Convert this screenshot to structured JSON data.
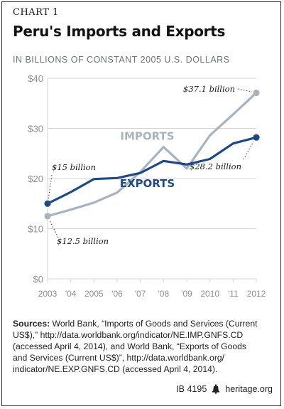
{
  "chart_label": "CHART 1",
  "title": "Peru's Imports and Exports",
  "subtitle": "IN BILLIONS OF CONSTANT 2005 U.S. DOLLARS",
  "sources": {
    "label": "Sources:",
    "text": "World Bank, “Imports of Goods and Services (Current US$),” http://data.worldbank.org/indicator/NE.IMP.GNFS.CD (accessed April 4, 2014), and World Bank, “Exports of Goods and Services (Current US$)”, http://data.worldbank.org/ indicator/NE.EXP.GNFS.CD (accessed April 4, 2014)."
  },
  "footer": {
    "id": "IB 4195",
    "site": "heritage.org",
    "logo_icon": "liberty-bell-icon"
  },
  "colors": {
    "imports": "#a7b4bf",
    "exports": "#1d4a86",
    "axis_text": "#8a8f94",
    "grid": "#d4d6d8"
  },
  "chart_data": {
    "type": "line",
    "x": [
      2003,
      2004,
      2005,
      2006,
      2007,
      2008,
      2009,
      2010,
      2011,
      2012
    ],
    "x_tick_labels": [
      "2003",
      "'04",
      "2005",
      "'06",
      "'07",
      "'08",
      "'09",
      "2010",
      "'11",
      "2012"
    ],
    "y_tick_labels": [
      "$0",
      "$10",
      "$20",
      "$30",
      "$40"
    ],
    "y_ticks": [
      0,
      10,
      20,
      30,
      40
    ],
    "ylim": [
      0,
      40
    ],
    "grid": true,
    "series": [
      {
        "name": "IMPORTS",
        "values": [
          12.5,
          13.8,
          15.2,
          17.2,
          21.3,
          26.3,
          22.0,
          28.6,
          32.8,
          37.1
        ],
        "marker_indices": [
          0,
          9
        ]
      },
      {
        "name": "EXPORTS",
        "values": [
          15.0,
          17.3,
          19.9,
          20.1,
          21.1,
          23.5,
          22.8,
          23.9,
          27.0,
          28.2
        ],
        "marker_indices": [
          0,
          9
        ]
      }
    ],
    "annotations": [
      {
        "text": "$15 billion",
        "series": 1,
        "index": 0
      },
      {
        "text": "$12.5 billion",
        "series": 0,
        "index": 0
      },
      {
        "text": "$37.1 billion",
        "series": 0,
        "index": 9
      },
      {
        "text": "$28.2 billion",
        "series": 1,
        "index": 9
      }
    ]
  }
}
